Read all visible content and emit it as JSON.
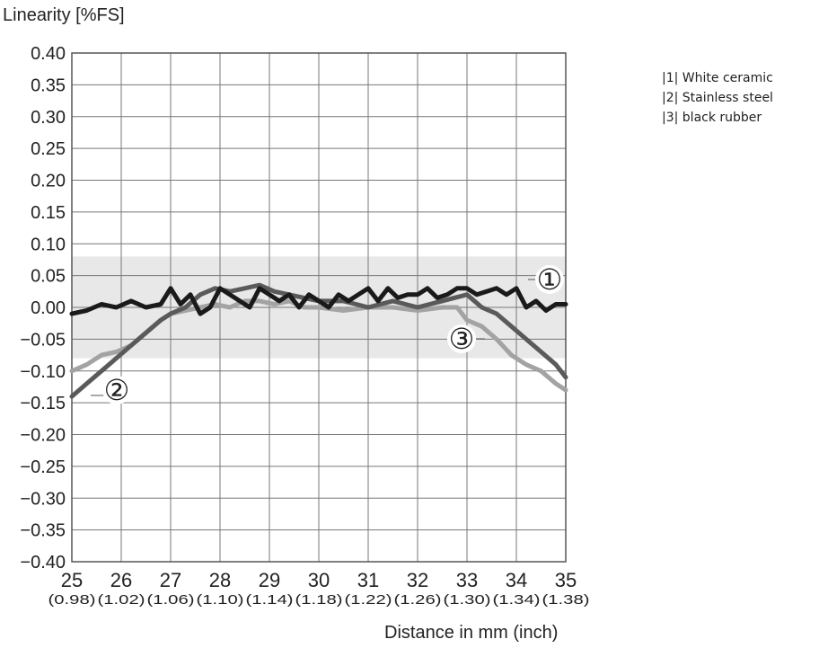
{
  "chart_data": {
    "type": "line",
    "ylabel": "Linearity [%FS]",
    "xlabel": "Distance in mm (inch)",
    "xlim": [
      25,
      35
    ],
    "ylim": [
      -0.4,
      0.4
    ],
    "x_ticks": [
      25,
      26,
      27,
      28,
      29,
      30,
      31,
      32,
      33,
      34,
      35
    ],
    "x_tick_labels": [
      "25",
      "26",
      "27",
      "28",
      "29",
      "30",
      "31",
      "32",
      "33",
      "34",
      "35"
    ],
    "x_tick_sublabels": [
      "(0.98)",
      "(1.02)",
      "(1.06)",
      "(1.10)",
      "(1.14)",
      "(1.18)",
      "(1.22)",
      "(1.26)",
      "(1.30)",
      "(1.34)",
      "(1.38)"
    ],
    "y_ticks": [
      0.4,
      0.35,
      0.3,
      0.25,
      0.2,
      0.15,
      0.1,
      0.05,
      0.0,
      -0.05,
      -0.1,
      -0.15,
      -0.2,
      -0.25,
      -0.3,
      -0.35,
      -0.4
    ],
    "y_tick_labels": [
      "0.40",
      "0.35",
      "0.30",
      "0.25",
      "0.20",
      "0.15",
      "0.10",
      "0.05",
      "0.00",
      "−0.05",
      "−0.10",
      "−0.15",
      "−0.20",
      "−0.25",
      "−0.30",
      "−0.35",
      "−0.40"
    ],
    "tolerance_band": [
      -0.08,
      0.08
    ],
    "grid": true,
    "legend_position": "right-top",
    "series": [
      {
        "marker": "①",
        "color": "#1a1a1a",
        "x": [
          25.0,
          25.3,
          25.6,
          25.9,
          26.2,
          26.5,
          26.8,
          27.0,
          27.2,
          27.4,
          27.6,
          27.8,
          28.0,
          28.2,
          28.4,
          28.6,
          28.8,
          29.0,
          29.2,
          29.4,
          29.6,
          29.8,
          30.0,
          30.2,
          30.4,
          30.6,
          30.8,
          31.0,
          31.2,
          31.4,
          31.6,
          31.8,
          32.0,
          32.2,
          32.4,
          32.6,
          32.8,
          33.0,
          33.2,
          33.4,
          33.6,
          33.8,
          34.0,
          34.2,
          34.4,
          34.6,
          34.8,
          35.0
        ],
        "y": [
          -0.01,
          -0.005,
          0.005,
          0.0,
          0.01,
          0.0,
          0.005,
          0.03,
          0.005,
          0.02,
          -0.01,
          0.0,
          0.03,
          0.02,
          0.01,
          0.0,
          0.03,
          0.02,
          0.01,
          0.02,
          0.0,
          0.02,
          0.01,
          0.0,
          0.02,
          0.01,
          0.02,
          0.03,
          0.01,
          0.03,
          0.015,
          0.02,
          0.02,
          0.03,
          0.015,
          0.02,
          0.03,
          0.03,
          0.02,
          0.025,
          0.03,
          0.02,
          0.03,
          0.0,
          0.01,
          -0.005,
          0.005,
          0.005
        ]
      },
      {
        "marker": "②",
        "color": "#5a5a5a",
        "x": [
          25.0,
          25.3,
          25.6,
          25.9,
          26.2,
          26.5,
          26.8,
          27.0,
          27.3,
          27.6,
          27.9,
          28.2,
          28.5,
          28.8,
          29.1,
          29.4,
          29.7,
          30.0,
          30.5,
          31.0,
          31.5,
          32.0,
          32.5,
          33.0,
          33.3,
          33.6,
          33.9,
          34.2,
          34.5,
          34.8,
          35.0
        ],
        "y": [
          -0.14,
          -0.12,
          -0.1,
          -0.08,
          -0.06,
          -0.04,
          -0.02,
          -0.01,
          0.0,
          0.02,
          0.03,
          0.025,
          0.03,
          0.035,
          0.025,
          0.02,
          0.015,
          0.01,
          0.01,
          0.0,
          0.01,
          0.0,
          0.01,
          0.02,
          0.0,
          -0.01,
          -0.03,
          -0.05,
          -0.07,
          -0.09,
          -0.11
        ]
      },
      {
        "marker": "③",
        "color": "#a3a3a3",
        "x": [
          25.0,
          25.3,
          25.6,
          25.9,
          26.2,
          26.5,
          26.8,
          27.0,
          27.3,
          27.6,
          27.9,
          28.2,
          28.5,
          28.8,
          29.1,
          29.4,
          29.7,
          30.0,
          30.5,
          31.0,
          31.5,
          32.0,
          32.5,
          32.8,
          33.0,
          33.3,
          33.6,
          33.9,
          34.2,
          34.5,
          34.8,
          35.0
        ],
        "y": [
          -0.1,
          -0.09,
          -0.075,
          -0.07,
          -0.06,
          -0.04,
          -0.02,
          -0.01,
          -0.005,
          0.0,
          0.005,
          0.0,
          0.01,
          0.01,
          0.005,
          0.01,
          0.0,
          0.0,
          -0.005,
          0.0,
          0.0,
          -0.005,
          0.0,
          0.0,
          -0.02,
          -0.03,
          -0.05,
          -0.075,
          -0.09,
          -0.1,
          -0.12,
          -0.13
        ]
      }
    ]
  },
  "legend": {
    "items": [
      "|1| White ceramic",
      "|2| Stainless steel",
      "|3| black rubber"
    ]
  }
}
